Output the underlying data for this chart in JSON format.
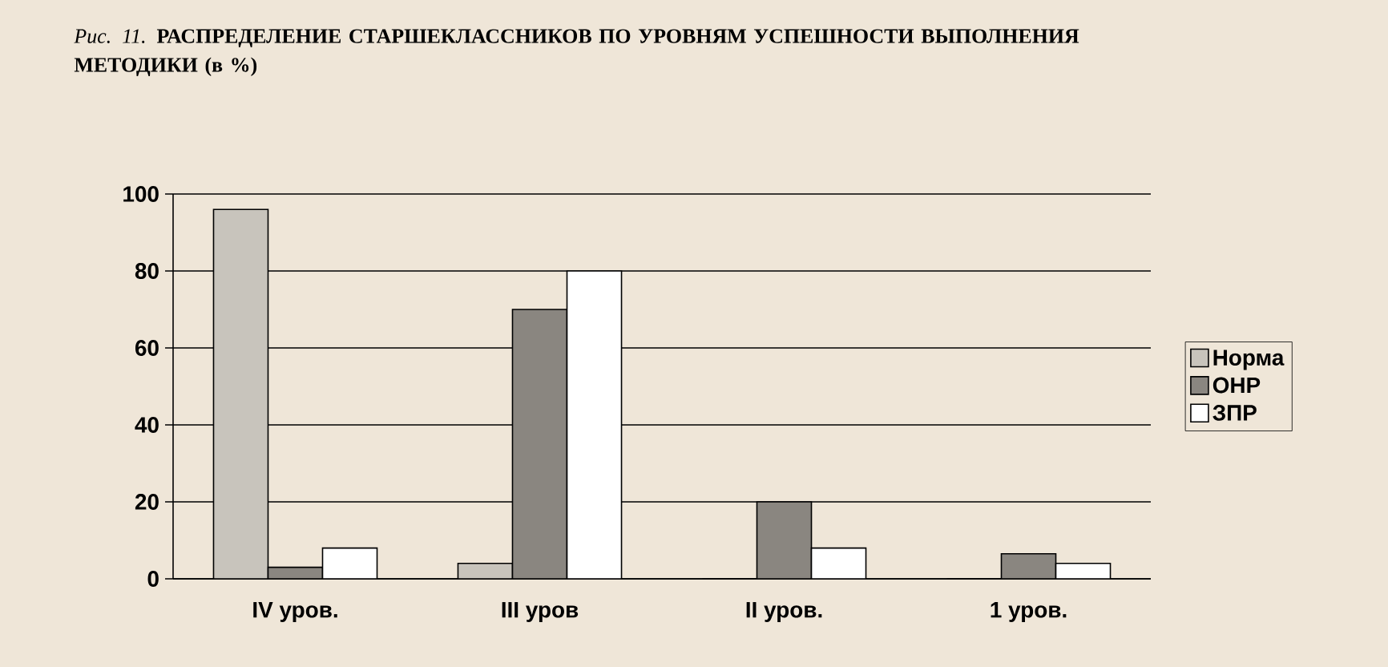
{
  "chart_data": {
    "type": "bar",
    "title": "*Рис. 11.* **РАСПРЕДЕЛЕНИЕ СТАРШЕКЛАССНИКОВ ПО УРОВНЯМ УСПЕШНОСТИ ВЫПОЛНЕНИЯ МЕТОДИКИ (в %)**",
    "categories": [
      "IV уров.",
      "III уров",
      "II уров.",
      "1 уров."
    ],
    "series": [
      {
        "name": "Норма",
        "color": "#c8c4bc",
        "values": [
          96,
          4,
          0,
          0
        ]
      },
      {
        "name": "ОНР",
        "color": "#8a8680",
        "values": [
          3,
          70,
          20,
          6.5
        ]
      },
      {
        "name": "ЗПР",
        "color": "#ffffff",
        "values": [
          8,
          80,
          8,
          4
        ]
      }
    ],
    "ylim": [
      0,
      100
    ],
    "yticks": [
      0,
      20,
      40,
      60,
      80,
      100
    ],
    "grid": "y",
    "legend": "right"
  }
}
